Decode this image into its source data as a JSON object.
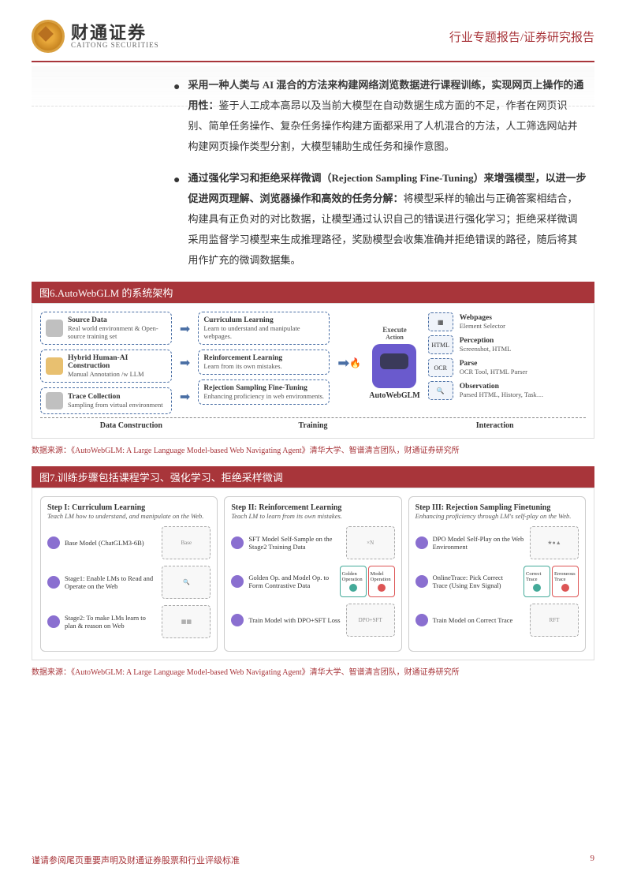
{
  "header": {
    "logo_cn": "财通证券",
    "logo_en": "CAITONG SECURITIES",
    "right": "行业专题报告/证券研究报告"
  },
  "bullets": [
    {
      "bold": "采用一种人类与 AI 混合的方法来构建网络浏览数据进行课程训练，实现网页上操作的通用性：",
      "text": "鉴于人工成本高昂以及当前大模型在自动数据生成方面的不足，作者在网页识别、简单任务操作、复杂任务操作构建方面都采用了人机混合的方法，人工筛选网站并构建网页操作类型分割，大模型辅助生成任务和操作意图。"
    },
    {
      "bold": "通过强化学习和拒绝采样微调（Rejection Sampling Fine-Tuning）来增强模型，以进一步促进网页理解、浏览器操作和高效的任务分解：",
      "text": "将模型采样的输出与正确答案相结合，构建具有正负对的对比数据，让模型通过认识自己的错误进行强化学习；拒绝采样微调采用监督学习模型来生成推理路径，奖励模型会收集准确并拒绝错误的路径，随后将其用作扩充的微调数据集。"
    }
  ],
  "fig6": {
    "title": "图6.AutoWebGLM 的系统架构",
    "left": [
      {
        "title": "Source Data",
        "sub": "Real world environment & Open-source training set",
        "icon": "gray"
      },
      {
        "title": "Hybrid Human-AI Construction",
        "sub": "Manual Annotation /w LLM",
        "icon": "blue"
      },
      {
        "title": "Trace Collection",
        "sub": "Sampling from virtual environment",
        "icon": "gray"
      }
    ],
    "mid": [
      {
        "title": "Curriculum Learning",
        "sub": "Learn to understand and manipulate webpages."
      },
      {
        "title": "Reinforcement Learning",
        "sub": "Learn from its own mistakes."
      },
      {
        "title": "Rejection Sampling Fine-Tuning",
        "sub": "Enhancing proficiency in web environments."
      }
    ],
    "center_name": "AutoWebGLM",
    "action_top": "Execute",
    "action_left": "Action",
    "right": [
      {
        "title": "Webpages",
        "sub": "Element Selector"
      },
      {
        "title": "Perception",
        "sub": "Screenshot, HTML"
      },
      {
        "title": "Parse",
        "sub": "OCR Tool, HTML Parser"
      },
      {
        "title": "Observation",
        "sub": "Parsed HTML, History, Task…"
      }
    ],
    "labels": [
      "Data Construction",
      "Training",
      "Interaction"
    ],
    "source": "数据来源：《AutoWebGLM: A Large Language Model-based Web Navigating Agent》清华大学、智谱清言团队，财通证券研究所"
  },
  "fig7": {
    "title": "图7.训练步骤包括课程学习、强化学习、拒绝采样微调",
    "steps": [
      {
        "title": "Step I: Curriculum Learning",
        "sub": "Teach LM how to understand, and manipulate on the Web.",
        "rows": [
          {
            "text": "Base Model (ChatGLM3-6B)",
            "vis": "Base"
          },
          {
            "text": "Stage1: Enable LMs to Read and Operate on the Web",
            "vis": "🔍"
          },
          {
            "text": "Stage2: To make LMs learn to plan & reason on Web",
            "vis": "▦▦"
          }
        ]
      },
      {
        "title": "Step II: Reinforcement Learning",
        "sub": "Teach LM to learn from its own mistakes.",
        "rows": [
          {
            "text": "SFT Model Self-Sample on the Stage2 Training Data",
            "vis": "×N"
          },
          {
            "text": "Golden Op. and Model Op. to Form Contrastive Data",
            "split": {
              "l": "Golden Operation",
              "r": "Model Operation"
            }
          },
          {
            "text": "Train Model with DPO+SFT Loss",
            "vis": "DPO+SFT"
          }
        ]
      },
      {
        "title": "Step III: Rejection Sampling Finetuning",
        "sub": "Enhancing proficiency through LM's self-play on the Web.",
        "rows": [
          {
            "text": "DPO Model Self-Play on the Web Environment",
            "vis": "★●▲"
          },
          {
            "text": "OnlineTrace: Pick Correct Trace (Using Env Signal)",
            "split": {
              "l": "Correct Trace",
              "r": "Erroneous Trace"
            }
          },
          {
            "text": "Train Model on Correct Trace",
            "vis": "RFT"
          }
        ]
      }
    ],
    "source": "数据来源：《AutoWebGLM: A Large Language Model-based Web Navigating Agent》清华大学、智谱清言团队，财通证券研究所"
  },
  "footer": {
    "left": "谨请参阅尾页重要声明及财通证券股票和行业评级标准",
    "page": "9"
  }
}
